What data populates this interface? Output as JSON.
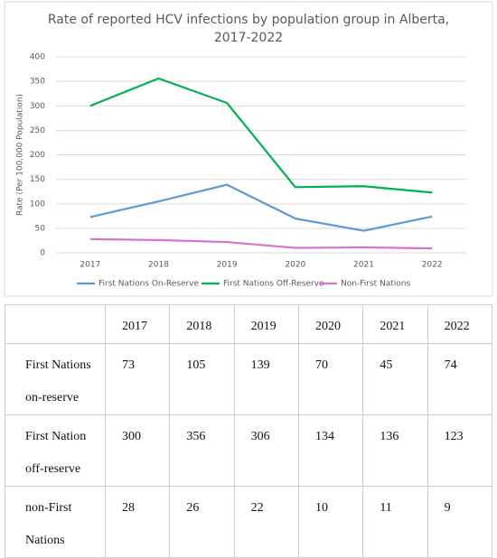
{
  "chart_data": {
    "type": "line",
    "title": "Rate of reported HCV infections by population group in Alberta, 2017-2022",
    "y_label": "Rate (Per 100,000 Population)",
    "categories": [
      "2017",
      "2018",
      "2019",
      "2020",
      "2021",
      "2022"
    ],
    "series": [
      {
        "name": "First Nations On-Reserve",
        "color": "#5b9bd5",
        "values": [
          73,
          105,
          139,
          70,
          45,
          74
        ]
      },
      {
        "name": "First Nations Off-Reserve",
        "color": "#00b050",
        "values": [
          300,
          356,
          306,
          134,
          136,
          123
        ]
      },
      {
        "name": "Non-First Nations",
        "color": "#d970cc",
        "values": [
          28,
          26,
          22,
          10,
          11,
          9
        ]
      }
    ],
    "ylim": [
      0,
      400
    ],
    "yticks": [
      0,
      50,
      100,
      150,
      200,
      250,
      300,
      350,
      400
    ],
    "grid": true,
    "legend": "bottom"
  },
  "table": {
    "columns": [
      "2017",
      "2018",
      "2019",
      "2020",
      "2021",
      "2022"
    ],
    "rows": [
      {
        "label": "First Nations on-reserve",
        "cells": [
          "73",
          "105",
          "139",
          "70",
          "45",
          "74"
        ]
      },
      {
        "label": "First Nation off-reserve",
        "cells": [
          "300",
          "356",
          "306",
          "134",
          "136",
          "123"
        ]
      },
      {
        "label": "non-First Nations",
        "cells": [
          "28",
          "26",
          "22",
          "10",
          "11",
          "9"
        ]
      }
    ]
  }
}
